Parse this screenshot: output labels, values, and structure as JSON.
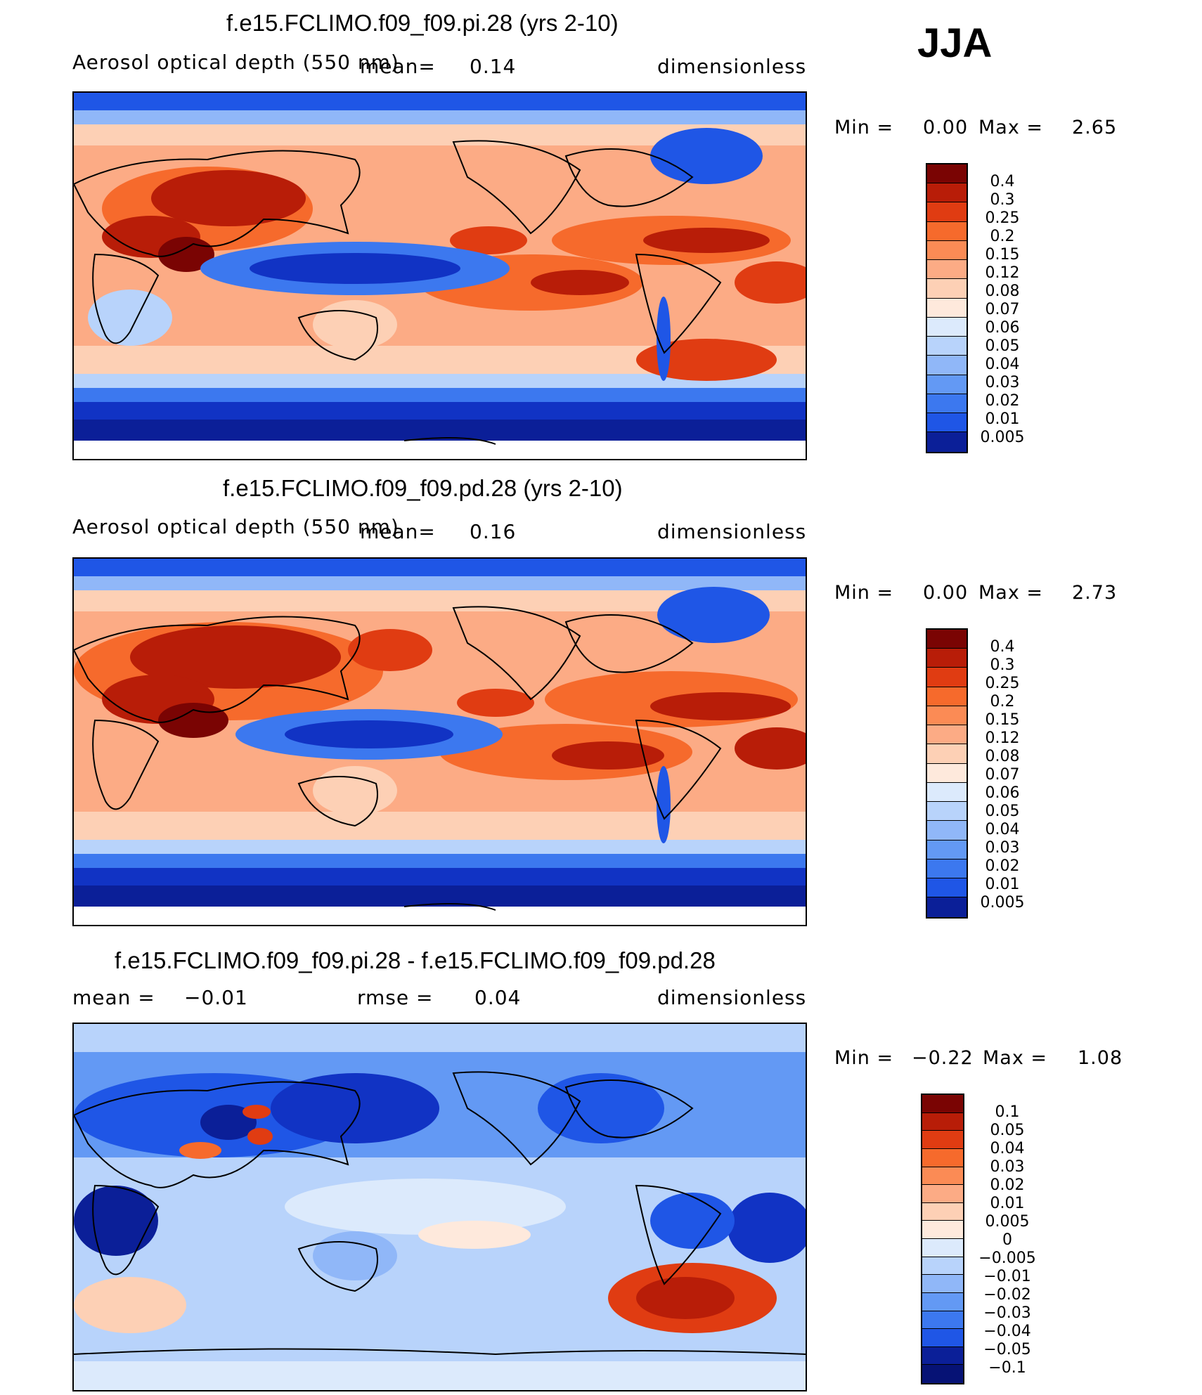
{
  "season": "JJA",
  "colors": {
    "pos": [
      "#7a0403",
      "#b81d08",
      "#e03c12",
      "#f66a2c",
      "#fb8b55",
      "#fcab85",
      "#fdd0b5",
      "#fee9dc"
    ],
    "neg": [
      "#dceafc",
      "#b8d3fb",
      "#90b7f8",
      "#6399f4",
      "#3c78ef",
      "#1f56e6",
      "#1133c4",
      "#0b1f98",
      "#061275"
    ],
    "land": "#000000"
  },
  "panels": [
    {
      "title": "f.e15.FCLIMO.f09_f09.pi.28 (yrs 2-10)",
      "left_label": "Aerosol optical depth (550 nm)",
      "mean_label": "mean=",
      "mean_value": "0.14",
      "units": "dimensionless",
      "min_label": "Min =",
      "min_value": "0.00",
      "max_label": "Max =",
      "max_value": "2.65",
      "levels": [
        "0.4",
        "0.3",
        "0.25",
        "0.2",
        "0.15",
        "0.12",
        "0.08",
        "0.07",
        "0.06",
        "0.05",
        "0.04",
        "0.03",
        "0.02",
        "0.01",
        "0.005"
      ]
    },
    {
      "title": "f.e15.FCLIMO.f09_f09.pd.28 (yrs 2-10)",
      "left_label": "Aerosol optical depth (550 nm)",
      "mean_label": "mean=",
      "mean_value": "0.16",
      "units": "dimensionless",
      "min_label": "Min =",
      "min_value": "0.00",
      "max_label": "Max =",
      "max_value": "2.73",
      "levels": [
        "0.4",
        "0.3",
        "0.25",
        "0.2",
        "0.15",
        "0.12",
        "0.08",
        "0.07",
        "0.06",
        "0.05",
        "0.04",
        "0.03",
        "0.02",
        "0.01",
        "0.005"
      ]
    },
    {
      "title": "f.e15.FCLIMO.f09_f09.pi.28 - f.e15.FCLIMO.f09_f09.pd.28",
      "left_label": "mean =",
      "mean_value": "−0.01",
      "rmse_label": "rmse =",
      "rmse_value": "0.04",
      "units": "dimensionless",
      "min_label": "Min =",
      "min_value": "−0.22",
      "max_label": "Max =",
      "max_value": "1.08",
      "levels": [
        "0.1",
        "0.05",
        "0.04",
        "0.03",
        "0.02",
        "0.01",
        "0.005",
        "0",
        "−0.005",
        "−0.01",
        "−0.02",
        "−0.03",
        "−0.04",
        "−0.05",
        "−0.1"
      ]
    }
  ]
}
